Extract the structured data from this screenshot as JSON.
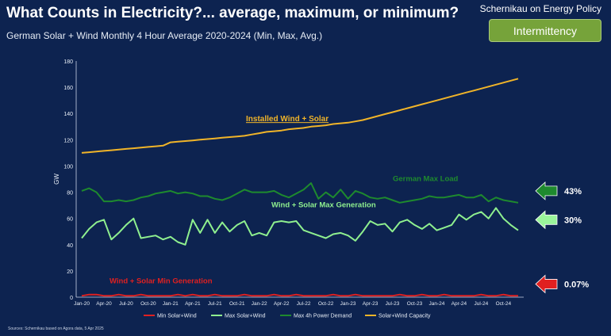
{
  "header": {
    "title": "What Counts in Electricity?... average, maximum, or minimum?",
    "subtitle": "German Solar + Wind Monthly 4 Hour Average 2020-2024 (Min, Max, Avg.)",
    "brand": "Schernikau on Energy Policy",
    "tag": "Intermittency"
  },
  "source": "Sources: Schernikau based on Agora data, 5 Apr 2025",
  "colors": {
    "background": "#0d2350",
    "capacity": "#f0b429",
    "max_demand": "#1e8a2e",
    "max_solar_wind": "#8ff08f",
    "min_solar_wind": "#e02020",
    "tag": "#76a33a"
  },
  "chart_data": {
    "type": "line",
    "title": "",
    "xlabel": "",
    "ylabel": "GW",
    "ylim": [
      0,
      180
    ],
    "yticks": [
      0,
      20,
      40,
      60,
      80,
      100,
      120,
      140,
      160,
      180
    ],
    "x": [
      "Jan-20",
      "Feb-20",
      "Mar-20",
      "Apr-20",
      "May-20",
      "Jun-20",
      "Jul-20",
      "Aug-20",
      "Sep-20",
      "Oct-20",
      "Nov-20",
      "Dec-20",
      "Jan-21",
      "Feb-21",
      "Mar-21",
      "Apr-21",
      "May-21",
      "Jun-21",
      "Jul-21",
      "Aug-21",
      "Sep-21",
      "Oct-21",
      "Nov-21",
      "Dec-21",
      "Jan-22",
      "Feb-22",
      "Mar-22",
      "Apr-22",
      "May-22",
      "Jun-22",
      "Jul-22",
      "Aug-22",
      "Sep-22",
      "Oct-22",
      "Nov-22",
      "Dec-22",
      "Jan-23",
      "Feb-23",
      "Mar-23",
      "Apr-23",
      "May-23",
      "Jun-23",
      "Jul-23",
      "Aug-23",
      "Sep-23",
      "Oct-23",
      "Nov-23",
      "Dec-23",
      "Jan-24",
      "Feb-24",
      "Mar-24",
      "Apr-24",
      "May-24",
      "Jun-24",
      "Jul-24",
      "Aug-24",
      "Sep-24",
      "Oct-24",
      "Nov-24",
      "Dec-24"
    ],
    "xtick_labels": [
      "Jan-20",
      "Apr-20",
      "Jul-20",
      "Oct-20",
      "Jan-21",
      "Apr-21",
      "Jul-21",
      "Oct-21",
      "Jan-22",
      "Apr-22",
      "Jul-22",
      "Oct-22",
      "Jan-23",
      "Apr-23",
      "Jul-23",
      "Oct-23",
      "Jan-24",
      "Apr-24",
      "Jul-24",
      "Oct-24"
    ],
    "series": [
      {
        "name": "Min Solar+Wind",
        "color": "#e02020",
        "values": [
          1,
          2,
          2,
          1,
          1,
          2,
          1,
          1,
          2,
          1,
          1,
          1,
          1,
          2,
          1,
          2,
          1,
          1,
          2,
          1,
          1,
          1,
          2,
          1,
          1,
          1,
          2,
          1,
          1,
          2,
          1,
          1,
          1,
          1,
          2,
          1,
          1,
          2,
          1,
          1,
          1,
          1,
          1,
          2,
          1,
          1,
          2,
          1,
          1,
          2,
          1,
          1,
          1,
          1,
          2,
          1,
          1,
          2,
          1,
          1
        ]
      },
      {
        "name": "Max Solar+Wind",
        "color": "#8ff08f",
        "values": [
          45,
          52,
          57,
          59,
          44,
          49,
          55,
          60,
          45,
          46,
          47,
          44,
          46,
          42,
          40,
          59,
          49,
          59,
          49,
          57,
          50,
          55,
          58,
          47,
          49,
          47,
          57,
          58,
          57,
          58,
          51,
          49,
          47,
          45,
          48,
          49,
          47,
          43,
          50,
          58,
          55,
          56,
          50,
          57,
          59,
          55,
          52,
          56,
          51,
          53,
          55,
          63,
          59,
          63,
          65,
          60,
          68,
          60,
          55,
          51
        ]
      },
      {
        "name": "Max 4h Power Demand",
        "color": "#1e8a2e",
        "values": [
          81,
          83,
          80,
          73,
          73,
          74,
          73,
          74,
          76,
          77,
          79,
          80,
          81,
          79,
          80,
          79,
          77,
          77,
          75,
          74,
          76,
          79,
          82,
          80,
          80,
          80,
          81,
          78,
          76,
          79,
          82,
          87,
          75,
          80,
          76,
          82,
          75,
          81,
          79,
          76,
          75,
          76,
          74,
          72,
          73,
          74,
          75,
          77,
          76,
          76,
          77,
          78,
          76,
          76,
          78,
          73,
          76,
          74,
          73,
          72
        ]
      },
      {
        "name": "Solar+Wind Capacity",
        "color": "#f0b429",
        "values": [
          110,
          110.5,
          111,
          111.5,
          112,
          112.5,
          113,
          113.5,
          114,
          114.5,
          115,
          115.5,
          118,
          118.5,
          119,
          119.5,
          120,
          120.5,
          121,
          121.5,
          122,
          122.5,
          123,
          124,
          125,
          126,
          126.5,
          127,
          128,
          128.5,
          129,
          130,
          130.5,
          131,
          132,
          132.5,
          133,
          134,
          135,
          136.5,
          138,
          139.5,
          141,
          142.5,
          144,
          145.5,
          147,
          148.5,
          150,
          151.5,
          153,
          154.5,
          156,
          157.5,
          159,
          160.5,
          162,
          163.5,
          165,
          166.5
        ]
      }
    ],
    "annotations": {
      "installed": "Installed Wind + Solar",
      "max_load": "German Max Load",
      "max_gen": "Wind + Solar Max Generation",
      "min_gen": "Wind + Solar Min Generation"
    },
    "callouts": [
      {
        "label": "43%",
        "color": "#1e8a2e",
        "anchor_value": 81
      },
      {
        "label": "30%",
        "color": "#9af59a",
        "anchor_value": 59
      },
      {
        "label": "0.07%",
        "color": "#e02020",
        "anchor_value": 10
      }
    ],
    "legend_position": "bottom",
    "grid": false
  }
}
